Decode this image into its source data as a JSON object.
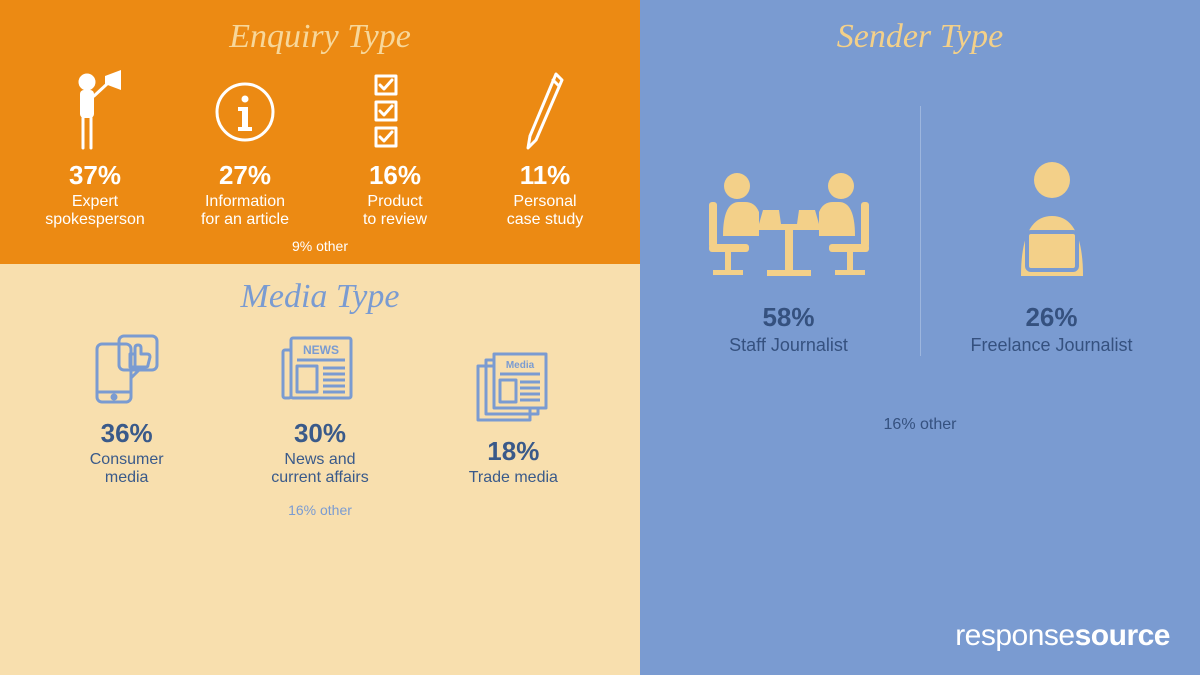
{
  "colors": {
    "enquiry_bg": "#ec8a13",
    "enquiry_title": "#f7d79a",
    "enquiry_text": "#ffffff",
    "media_bg": "#f8dfae",
    "media_title": "#7a9bd1",
    "media_accent": "#7a9bd1",
    "media_text_dark": "#3a5a8a",
    "sender_bg": "#7a9bd1",
    "sender_title": "#f3d089",
    "sender_icon": "#f3d089",
    "sender_text_dark": "#35517f",
    "sender_divider": "#9db6de",
    "logo": "#ffffff"
  },
  "enquiry": {
    "title": "Enquiry Type",
    "title_fontsize": 34,
    "items": [
      {
        "percent": "37%",
        "label": "Expert\nspokesperson",
        "icon": "megaphone-person-icon"
      },
      {
        "percent": "27%",
        "label": "Information\nfor an article",
        "icon": "info-icon"
      },
      {
        "percent": "16%",
        "label": "Product\nto review",
        "icon": "checklist-icon"
      },
      {
        "percent": "11%",
        "label": "Personal\ncase study",
        "icon": "pen-icon"
      }
    ],
    "other": "9% other",
    "pct_fontsize": 26,
    "label_fontsize": 16
  },
  "media": {
    "title": "Media Type",
    "title_fontsize": 34,
    "items": [
      {
        "percent": "36%",
        "label": "Consumer\nmedia",
        "icon": "thumbsup-phone-icon"
      },
      {
        "percent": "30%",
        "label": "News and\ncurrent affairs",
        "icon": "news-icon"
      },
      {
        "percent": "18%",
        "label": "Trade media",
        "icon": "media-stack-icon"
      }
    ],
    "other": "16% other",
    "pct_fontsize": 26,
    "label_fontsize": 16
  },
  "sender": {
    "title": "Sender Type",
    "title_fontsize": 34,
    "items": [
      {
        "percent": "58%",
        "label": "Staff Journalist",
        "icon": "staff-journalist-icon"
      },
      {
        "percent": "26%",
        "label": "Freelance Journalist",
        "icon": "freelance-journalist-icon"
      }
    ],
    "other": "16% other",
    "pct_fontsize": 26,
    "label_fontsize": 18
  },
  "logo": {
    "thin": "response",
    "bold": "source",
    "fontsize": 30
  }
}
